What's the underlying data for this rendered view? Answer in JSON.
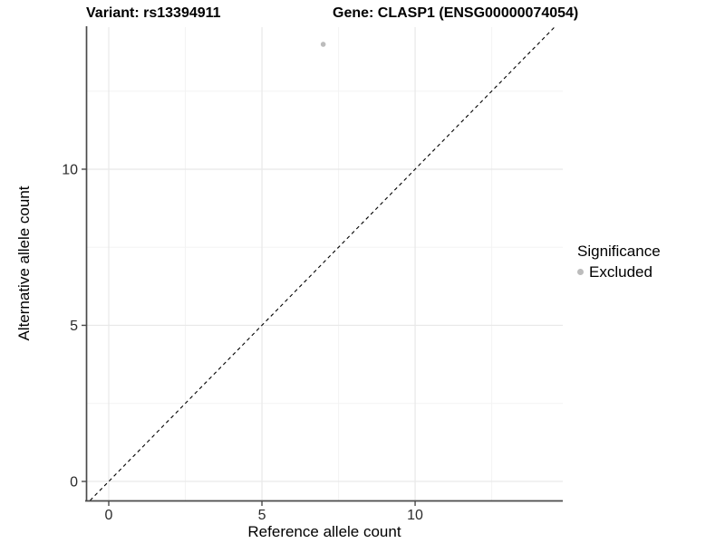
{
  "header": {
    "variant_title": "Variant: rs13394911",
    "gene_title": "Gene: CLASP1 (ENSG00000074054)"
  },
  "chart_data": {
    "type": "scatter",
    "title_left": "Variant: rs13394911",
    "title_right": "Gene: CLASP1 (ENSG00000074054)",
    "xlabel": "Reference allele count",
    "ylabel": "Alternative allele count",
    "xlim": [
      -0.71,
      14.82
    ],
    "ylim": [
      -0.61,
      14.55
    ],
    "x_major_ticks": [
      0,
      5,
      10
    ],
    "y_major_ticks": [
      0,
      5,
      10
    ],
    "x_minor_ticks": [
      2.5,
      7.5,
      12.5
    ],
    "y_minor_ticks": [
      2.5,
      7.5,
      12.5
    ],
    "grid": "major and minor, light gray on white",
    "points": [
      {
        "x": 7,
        "y": 14,
        "series": "Excluded"
      }
    ],
    "reference_line": {
      "slope": 1,
      "intercept": 0,
      "style": "dashed",
      "note": "y = x identity line"
    },
    "legend": {
      "title": "Significance",
      "position": "right",
      "entries": [
        {
          "label": "Excluded",
          "color": "#bcbcbc"
        }
      ]
    },
    "colors": {
      "point": "#bcbcbc",
      "grid_major": "#e8e8e8",
      "grid_minor": "#f3f3f3",
      "axis": "#4a4a4a",
      "dashed_line": "#000000",
      "tick_text": "#2b2b2b"
    }
  }
}
